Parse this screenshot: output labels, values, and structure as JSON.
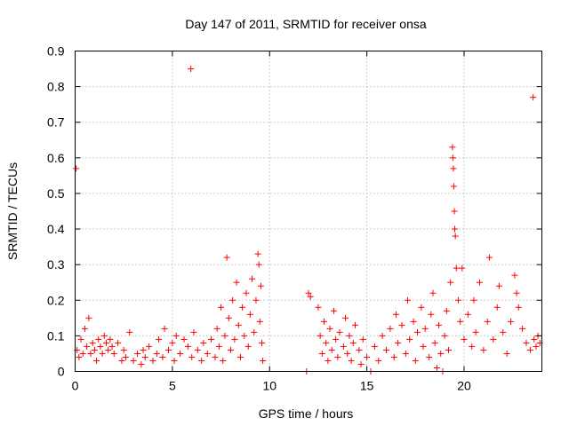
{
  "chart_data": {
    "type": "scatter",
    "title": "Day 147 of 2011, SRMTID for receiver onsa",
    "xlabel": "GPS time / hours",
    "ylabel": "SRMTID / TECUs",
    "xlim": [
      0,
      24
    ],
    "ylim": [
      0,
      0.9
    ],
    "xticks": [
      0,
      5,
      10,
      15,
      20
    ],
    "xtick_labels": [
      "0",
      "5",
      "10",
      "15",
      "20"
    ],
    "yticks": [
      0,
      0.1,
      0.2,
      0.3,
      0.4,
      0.5,
      0.6,
      0.7,
      0.8,
      0.9
    ],
    "ytick_labels": [
      "0",
      "0.1",
      "0.2",
      "0.3",
      "0.4",
      "0.5",
      "0.6",
      "0.7",
      "0.8",
      "0.9"
    ],
    "grid": true,
    "marker": "+",
    "color": "#ff0000",
    "series": [
      {
        "name": "SRMTID",
        "points": [
          [
            0.05,
            0.57
          ],
          [
            0.1,
            0.06
          ],
          [
            0.2,
            0.04
          ],
          [
            0.3,
            0.09
          ],
          [
            0.4,
            0.05
          ],
          [
            0.5,
            0.12
          ],
          [
            0.6,
            0.07
          ],
          [
            0.7,
            0.15
          ],
          [
            0.8,
            0.05
          ],
          [
            0.9,
            0.08
          ],
          [
            1.0,
            0.06
          ],
          [
            1.1,
            0.03
          ],
          [
            1.2,
            0.09
          ],
          [
            1.3,
            0.07
          ],
          [
            1.4,
            0.05
          ],
          [
            1.5,
            0.1
          ],
          [
            1.6,
            0.08
          ],
          [
            1.7,
            0.06
          ],
          [
            1.8,
            0.09
          ],
          [
            1.9,
            0.07
          ],
          [
            2.0,
            0.05
          ],
          [
            2.2,
            0.08
          ],
          [
            2.4,
            0.03
          ],
          [
            2.5,
            0.06
          ],
          [
            2.6,
            0.04
          ],
          [
            2.8,
            0.11
          ],
          [
            3.0,
            0.03
          ],
          [
            3.2,
            0.05
          ],
          [
            3.4,
            0.02
          ],
          [
            3.5,
            0.06
          ],
          [
            3.6,
            0.04
          ],
          [
            3.8,
            0.07
          ],
          [
            4.0,
            0.03
          ],
          [
            4.2,
            0.05
          ],
          [
            4.3,
            0.09
          ],
          [
            4.5,
            0.04
          ],
          [
            4.6,
            0.12
          ],
          [
            4.8,
            0.06
          ],
          [
            5.0,
            0.08
          ],
          [
            5.1,
            0.03
          ],
          [
            5.2,
            0.1
          ],
          [
            5.4,
            0.05
          ],
          [
            5.6,
            0.09
          ],
          [
            5.8,
            0.07
          ],
          [
            5.95,
            0.85
          ],
          [
            6.0,
            0.04
          ],
          [
            6.1,
            0.11
          ],
          [
            6.3,
            0.06
          ],
          [
            6.5,
            0.03
          ],
          [
            6.6,
            0.08
          ],
          [
            6.8,
            0.05
          ],
          [
            7.0,
            0.09
          ],
          [
            7.2,
            0.04
          ],
          [
            7.3,
            0.12
          ],
          [
            7.4,
            0.07
          ],
          [
            7.5,
            0.18
          ],
          [
            7.6,
            0.03
          ],
          [
            7.7,
            0.1
          ],
          [
            7.8,
            0.32
          ],
          [
            7.9,
            0.15
          ],
          [
            8.0,
            0.06
          ],
          [
            8.1,
            0.2
          ],
          [
            8.2,
            0.09
          ],
          [
            8.3,
            0.25
          ],
          [
            8.4,
            0.13
          ],
          [
            8.5,
            0.04
          ],
          [
            8.6,
            0.18
          ],
          [
            8.7,
            0.1
          ],
          [
            8.8,
            0.22
          ],
          [
            8.9,
            0.07
          ],
          [
            9.0,
            0.16
          ],
          [
            9.1,
            0.26
          ],
          [
            9.2,
            0.11
          ],
          [
            9.3,
            0.2
          ],
          [
            9.4,
            0.33
          ],
          [
            9.45,
            0.3
          ],
          [
            9.5,
            0.14
          ],
          [
            9.55,
            0.24
          ],
          [
            9.6,
            0.08
          ],
          [
            9.65,
            0.03
          ],
          [
            11.9,
            0.0
          ],
          [
            12.0,
            0.22
          ],
          [
            12.1,
            0.21
          ],
          [
            12.5,
            0.18
          ],
          [
            12.6,
            0.1
          ],
          [
            12.7,
            0.05
          ],
          [
            12.8,
            0.14
          ],
          [
            12.9,
            0.08
          ],
          [
            13.0,
            0.03
          ],
          [
            13.1,
            0.12
          ],
          [
            13.2,
            0.06
          ],
          [
            13.3,
            0.17
          ],
          [
            13.4,
            0.09
          ],
          [
            13.5,
            0.04
          ],
          [
            13.6,
            0.11
          ],
          [
            13.8,
            0.07
          ],
          [
            13.9,
            0.15
          ],
          [
            14.0,
            0.05
          ],
          [
            14.1,
            0.1
          ],
          [
            14.2,
            0.03
          ],
          [
            14.3,
            0.08
          ],
          [
            14.4,
            0.13
          ],
          [
            14.6,
            0.06
          ],
          [
            14.7,
            0.02
          ],
          [
            14.8,
            0.09
          ],
          [
            15.0,
            0.04
          ],
          [
            15.2,
            0.0
          ],
          [
            15.4,
            0.07
          ],
          [
            15.6,
            0.03
          ],
          [
            15.8,
            0.1
          ],
          [
            16.0,
            0.06
          ],
          [
            16.2,
            0.12
          ],
          [
            16.4,
            0.04
          ],
          [
            16.5,
            0.16
          ],
          [
            16.6,
            0.08
          ],
          [
            16.8,
            0.13
          ],
          [
            17.0,
            0.05
          ],
          [
            17.1,
            0.2
          ],
          [
            17.2,
            0.09
          ],
          [
            17.4,
            0.14
          ],
          [
            17.5,
            0.03
          ],
          [
            17.6,
            0.11
          ],
          [
            17.8,
            0.18
          ],
          [
            17.9,
            0.07
          ],
          [
            18.0,
            0.12
          ],
          [
            18.2,
            0.04
          ],
          [
            18.3,
            0.16
          ],
          [
            18.4,
            0.22
          ],
          [
            18.5,
            0.08
          ],
          [
            18.6,
            0.01
          ],
          [
            18.7,
            0.13
          ],
          [
            18.8,
            0.05
          ],
          [
            18.9,
            0.0
          ],
          [
            19.0,
            0.1
          ],
          [
            19.1,
            0.17
          ],
          [
            19.2,
            0.06
          ],
          [
            19.3,
            0.25
          ],
          [
            19.4,
            0.63
          ],
          [
            19.42,
            0.6
          ],
          [
            19.45,
            0.57
          ],
          [
            19.47,
            0.52
          ],
          [
            19.5,
            0.45
          ],
          [
            19.52,
            0.4
          ],
          [
            19.55,
            0.38
          ],
          [
            19.6,
            0.29
          ],
          [
            19.7,
            0.2
          ],
          [
            19.8,
            0.14
          ],
          [
            19.9,
            0.29
          ],
          [
            20.0,
            0.09
          ],
          [
            20.2,
            0.16
          ],
          [
            20.4,
            0.07
          ],
          [
            20.5,
            0.2
          ],
          [
            20.6,
            0.11
          ],
          [
            20.8,
            0.25
          ],
          [
            21.0,
            0.06
          ],
          [
            21.2,
            0.14
          ],
          [
            21.3,
            0.32
          ],
          [
            21.5,
            0.09
          ],
          [
            21.7,
            0.18
          ],
          [
            21.8,
            0.24
          ],
          [
            22.0,
            0.11
          ],
          [
            22.2,
            0.05
          ],
          [
            22.4,
            0.14
          ],
          [
            22.6,
            0.27
          ],
          [
            22.7,
            0.22
          ],
          [
            22.8,
            0.18
          ],
          [
            23.0,
            0.12
          ],
          [
            23.2,
            0.08
          ],
          [
            23.4,
            0.06
          ],
          [
            23.55,
            0.77
          ],
          [
            23.6,
            0.09
          ],
          [
            23.7,
            0.07
          ],
          [
            23.8,
            0.1
          ],
          [
            23.9,
            0.08
          ]
        ]
      }
    ]
  }
}
